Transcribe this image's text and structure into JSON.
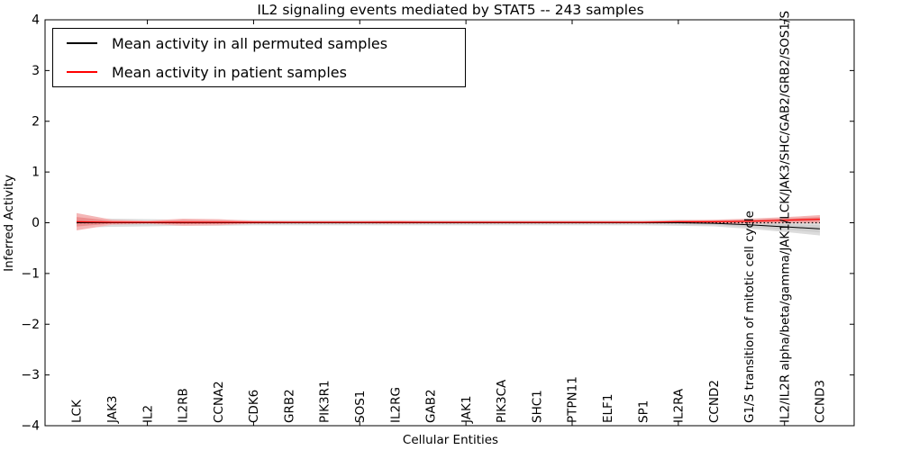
{
  "figure": {
    "title": "IL2 signaling events mediated by STAT5 -- 243 samples",
    "xlabel": "Cellular Entities",
    "ylabel": "Inferred Activity"
  },
  "chart_data": {
    "type": "line",
    "title": "IL2 signaling events mediated by STAT5 -- 243 samples",
    "xlabel": "Cellular Entities",
    "ylabel": "Inferred Activity",
    "ylim": [
      -4,
      4
    ],
    "ytick_values": [
      4,
      3,
      2,
      1,
      0,
      -1,
      -2,
      -3,
      -4
    ],
    "ytick_labels": [
      "4",
      "3",
      "2",
      "1",
      "0",
      "−1",
      "−2",
      "−3",
      "−4"
    ],
    "grid": false,
    "legend_position": "upper left",
    "zero_reference_line": {
      "y": 0,
      "style": "dotted",
      "color": "#000000"
    },
    "categories": [
      "LCK",
      "JAK3",
      "IL2",
      "IL2RB",
      "CCNA2",
      "CDK6",
      "GRB2",
      "PIK3R1",
      "SOS1",
      "IL2RG",
      "GAB2",
      "JAK1",
      "PIK3CA",
      "SHC1",
      "PTPN11",
      "ELF1",
      "SP1",
      "IL2RA",
      "CCND2",
      "G1/S transition of mitotic cell cycle",
      "IL2/IL2R alpha/beta/gamma/JAK1/LCK/JAK3/SHC/GAB2/GRB2/SOS1/S",
      "CCND3"
    ],
    "series": [
      {
        "name": "Mean activity in all permuted samples",
        "color": "#000000",
        "band_color": "#dcdcdc",
        "band_inner_color": "#cfcfcf",
        "values": [
          0,
          0,
          0,
          0,
          0,
          0,
          0,
          0,
          0,
          0,
          0,
          0,
          0,
          0,
          0,
          0,
          0,
          0,
          -0.01,
          -0.04,
          -0.08,
          -0.12
        ],
        "band_halfwidth": [
          0.1,
          0.08,
          0.07,
          0.06,
          0.06,
          0.05,
          0.05,
          0.05,
          0.05,
          0.05,
          0.05,
          0.05,
          0.05,
          0.05,
          0.05,
          0.05,
          0.05,
          0.06,
          0.06,
          0.08,
          0.1,
          0.13
        ]
      },
      {
        "name": "Mean activity in patient samples",
        "color": "#ff0000",
        "band_color": "#f4b6b6",
        "band_inner_color": "#ec8f8f",
        "values": [
          0.02,
          0.01,
          0.01,
          0.01,
          0.01,
          0.01,
          0.01,
          0.01,
          0.01,
          0.01,
          0.01,
          0.01,
          0.01,
          0.01,
          0.01,
          0.01,
          0.01,
          0.02,
          0.02,
          0.03,
          0.05,
          0.07
        ],
        "band_halfwidth": [
          0.17,
          0.05,
          0.03,
          0.07,
          0.06,
          0.03,
          0.02,
          0.02,
          0.02,
          0.03,
          0.02,
          0.02,
          0.02,
          0.02,
          0.02,
          0.02,
          0.02,
          0.03,
          0.04,
          0.05,
          0.06,
          0.08
        ]
      }
    ]
  }
}
